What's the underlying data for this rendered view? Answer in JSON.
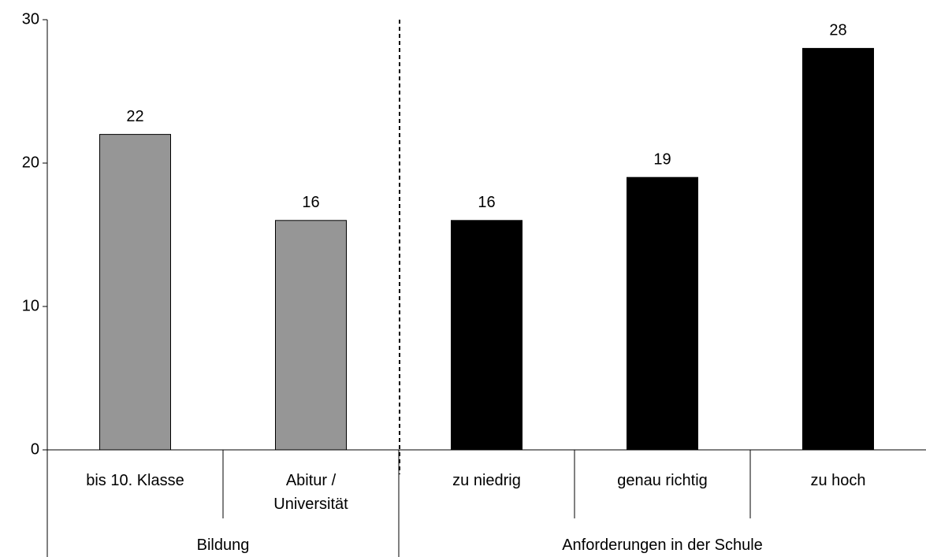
{
  "chart_data": {
    "type": "bar",
    "categories": [
      "bis 10. Klasse",
      "Abitur /\nUniversität",
      "zu niedrig",
      "genau richtig",
      "zu hoch"
    ],
    "values": [
      22,
      16,
      16,
      19,
      28
    ],
    "groups": [
      {
        "name": "Bildung",
        "categories": [
          0,
          1
        ],
        "color": "#969696"
      },
      {
        "name": "Anforderungen in der Schule",
        "categories": [
          2,
          3,
          4
        ],
        "color": "#000000"
      }
    ],
    "ylim": [
      0,
      30
    ],
    "yticks": [
      0,
      10,
      20,
      30
    ],
    "grid": false
  }
}
